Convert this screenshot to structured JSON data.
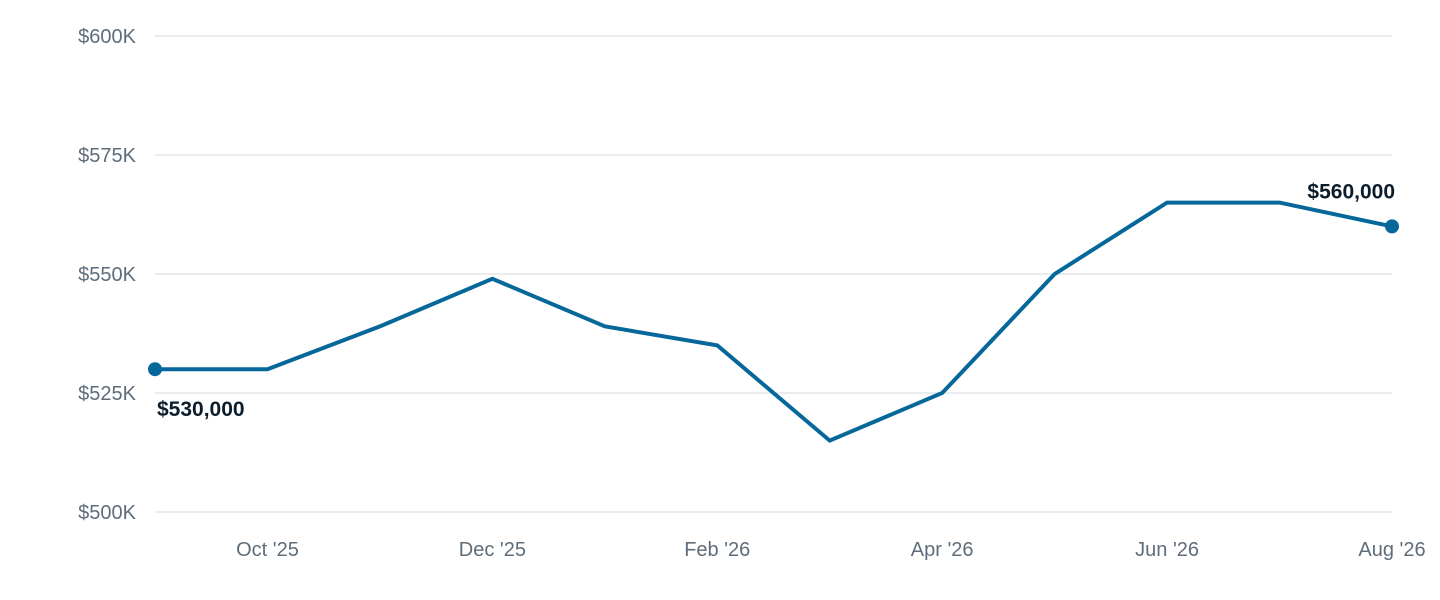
{
  "chart_data": {
    "type": "line",
    "title": "",
    "xlabel": "",
    "ylabel": "",
    "x": [
      "Sep '25",
      "Oct '25",
      "Nov '25",
      "Dec '25",
      "Jan '26",
      "Feb '26",
      "Mar '26",
      "Apr '26",
      "May '26",
      "Jun '26",
      "Jul '26",
      "Aug '26"
    ],
    "series": [
      {
        "values": [
          530000,
          530000,
          539000,
          549000,
          539000,
          535000,
          515000,
          525000,
          550000,
          565000,
          565000,
          560000
        ],
        "color": "#06679a"
      }
    ],
    "ylim": [
      500000,
      600000
    ],
    "y_ticks": [
      {
        "value": 600000,
        "label": "$600K"
      },
      {
        "value": 575000,
        "label": "$575K"
      },
      {
        "value": 550000,
        "label": "$550K"
      },
      {
        "value": 525000,
        "label": "$525K"
      },
      {
        "value": 500000,
        "label": "$500K"
      }
    ],
    "x_ticks": [
      {
        "value": "Oct '25",
        "label": "Oct '25"
      },
      {
        "value": "Dec '25",
        "label": "Dec '25"
      },
      {
        "value": "Feb '26",
        "label": "Feb '26"
      },
      {
        "value": "Apr '26",
        "label": "Apr '26"
      },
      {
        "value": "Jun '26",
        "label": "Jun '26"
      },
      {
        "value": "Aug '26",
        "label": "Aug '26"
      }
    ],
    "annotations": [
      {
        "x": "Sep '25",
        "y": 530000,
        "label": "$530,000",
        "position": "below"
      },
      {
        "x": "Aug '26",
        "y": 560000,
        "label": "$560,000",
        "position": "above"
      }
    ],
    "grid": true,
    "grid_color": "#e3e7ec",
    "legend": "none"
  }
}
